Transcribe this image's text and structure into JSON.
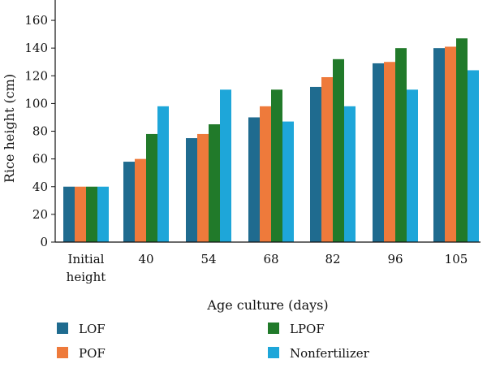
{
  "chart_data": {
    "type": "bar",
    "categories": [
      [
        "Initial",
        "height"
      ],
      [
        "40"
      ],
      [
        "54"
      ],
      [
        "68"
      ],
      [
        "82"
      ],
      [
        "96"
      ],
      [
        "105"
      ]
    ],
    "series": [
      {
        "name": "LOF",
        "color": "#1f6b8f",
        "values": [
          40,
          58,
          75,
          90,
          112,
          129,
          140
        ]
      },
      {
        "name": "POF",
        "color": "#ee7a3b",
        "values": [
          40,
          60,
          78,
          98,
          119,
          130,
          141
        ]
      },
      {
        "name": "LPOF",
        "color": "#217a2a",
        "values": [
          40,
          78,
          85,
          110,
          132,
          140,
          147
        ]
      },
      {
        "name": "Nonfertilizer",
        "color": "#1ea6d9",
        "values": [
          40,
          98,
          110,
          87,
          98,
          110,
          124
        ]
      }
    ],
    "xlabel": "Age culture (days)",
    "ylabel": "Rice height (cm)",
    "ylim": [
      0,
      170
    ],
    "yticks": [
      "0",
      "20",
      "40",
      "60",
      "80",
      "100",
      "120",
      "140",
      "160"
    ],
    "grid": false,
    "legend_position": "bottom"
  }
}
